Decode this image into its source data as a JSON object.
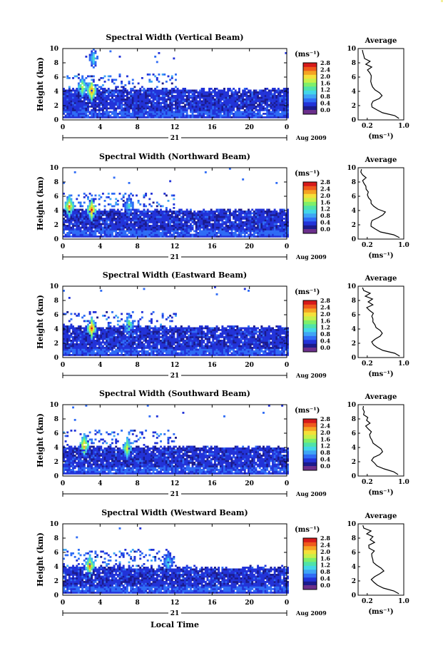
{
  "colors": {
    "colorbar": [
      "#1b1b8c",
      "#2233d8",
      "#2f6cf5",
      "#3fa5f5",
      "#43d6e8",
      "#50e3a8",
      "#7fef6a",
      "#c8f04a",
      "#f5e03a",
      "#f5a323",
      "#ef5a1c",
      "#d61a1a"
    ],
    "below_min": "#6b2f8c",
    "corner_mark": "#f3ef9a"
  },
  "shared": {
    "xticks": [
      "0",
      "4",
      "8",
      "12",
      "16",
      "20",
      "0"
    ],
    "yticks": [
      "0",
      "2",
      "4",
      "6",
      "8",
      "10"
    ],
    "ylabel": "Height (km)",
    "day_label": "21",
    "date_label": "Aug 2009",
    "unit_label": "(ms⁻¹)",
    "colorbar_ticks": [
      "0.0",
      "0.4",
      "0.8",
      "1.2",
      "1.6",
      "2.0",
      "2.4",
      "2.8"
    ],
    "avg_title": "Average",
    "avg_yticks": [
      "0",
      "2",
      "4",
      "6",
      "8",
      "10"
    ],
    "avg_xticks": [
      "0.2",
      "1.0"
    ],
    "avg_xlabel": "(ms⁻¹)",
    "xlabel": "Local Time"
  },
  "chart_data": [
    {
      "type": "heatmap",
      "title": "Spectral Width (Vertical Beam)",
      "x_range_hours": [
        0,
        24
      ],
      "y_range_km": [
        0,
        10
      ],
      "color_range_ms": [
        0.0,
        2.8
      ],
      "cloud_top_km": 4.2,
      "features": [
        {
          "t": 3.0,
          "h": 4.0,
          "v": 2.6
        },
        {
          "t": 2.0,
          "h": 4.5,
          "v": 1.8
        },
        {
          "t": 3.2,
          "h": 8.5,
          "v": 1.2
        }
      ],
      "average_profile": {
        "type": "line",
        "xlim": [
          0.0,
          1.0
        ],
        "ylim": [
          0,
          10
        ],
        "heights_km": [
          0.2,
          0.6,
          1.0,
          1.4,
          1.8,
          2.2,
          2.6,
          3.0,
          3.4,
          3.8,
          4.2,
          4.6,
          5.0,
          5.4,
          5.8,
          6.2,
          6.6,
          7.0,
          7.4,
          7.8,
          8.2,
          8.6,
          9.0,
          9.4,
          9.8
        ],
        "values_ms": [
          0.88,
          0.8,
          0.55,
          0.42,
          0.33,
          0.3,
          0.35,
          0.45,
          0.52,
          0.45,
          0.38,
          0.32,
          0.3,
          0.28,
          0.26,
          0.3,
          0.25,
          0.2,
          0.3,
          0.18,
          0.25,
          0.15,
          0.15,
          0.1,
          0.1
        ]
      }
    },
    {
      "type": "heatmap",
      "title": "Spectral Width (Northward Beam)",
      "x_range_hours": [
        0,
        24
      ],
      "y_range_km": [
        0,
        10
      ],
      "color_range_ms": [
        0.0,
        2.8
      ],
      "cloud_top_km": 4.0,
      "features": [
        {
          "t": 3.0,
          "h": 4.0,
          "v": 2.6
        },
        {
          "t": 0.6,
          "h": 4.5,
          "v": 2.4
        },
        {
          "t": 7.0,
          "h": 4.5,
          "v": 1.2
        }
      ],
      "average_profile": {
        "type": "line",
        "xlim": [
          0.0,
          1.0
        ],
        "ylim": [
          0,
          10
        ],
        "heights_km": [
          0.2,
          0.6,
          1.0,
          1.4,
          1.8,
          2.2,
          2.6,
          3.0,
          3.4,
          3.8,
          4.2,
          4.6,
          5.0,
          5.4,
          5.8,
          6.2,
          6.6,
          7.0,
          7.4,
          7.8,
          8.2,
          8.6,
          9.0,
          9.4,
          9.8
        ],
        "values_ms": [
          0.9,
          0.78,
          0.5,
          0.38,
          0.3,
          0.28,
          0.32,
          0.45,
          0.56,
          0.6,
          0.45,
          0.35,
          0.3,
          0.28,
          0.25,
          0.22,
          0.2,
          0.18,
          0.15,
          0.12,
          0.1,
          0.15,
          0.08,
          0.08,
          0.08
        ]
      }
    },
    {
      "type": "heatmap",
      "title": "Spectral Width (Eastward Beam)",
      "x_range_hours": [
        0,
        24
      ],
      "y_range_km": [
        0,
        10
      ],
      "color_range_ms": [
        0.0,
        2.8
      ],
      "cloud_top_km": 4.2,
      "features": [
        {
          "t": 3.0,
          "h": 4.0,
          "v": 2.6
        },
        {
          "t": 7.0,
          "h": 4.5,
          "v": 1.6
        }
      ],
      "average_profile": {
        "type": "line",
        "xlim": [
          0.0,
          1.0
        ],
        "ylim": [
          0,
          10
        ],
        "heights_km": [
          0.2,
          0.6,
          1.0,
          1.4,
          1.8,
          2.2,
          2.6,
          3.0,
          3.4,
          3.8,
          4.2,
          4.6,
          5.0,
          5.4,
          5.8,
          6.2,
          6.6,
          7.0,
          7.4,
          7.8,
          8.2,
          8.6,
          9.0,
          9.4,
          9.8
        ],
        "values_ms": [
          0.92,
          0.82,
          0.56,
          0.43,
          0.35,
          0.32,
          0.36,
          0.46,
          0.52,
          0.48,
          0.4,
          0.36,
          0.34,
          0.32,
          0.3,
          0.32,
          0.24,
          0.2,
          0.3,
          0.22,
          0.3,
          0.16,
          0.25,
          0.1,
          0.1
        ]
      }
    },
    {
      "type": "heatmap",
      "title": "Spectral Width (Southward Beam)",
      "x_range_hours": [
        0,
        24
      ],
      "y_range_km": [
        0,
        10
      ],
      "color_range_ms": [
        0.0,
        2.8
      ],
      "cloud_top_km": 4.0,
      "features": [
        {
          "t": 2.2,
          "h": 4.2,
          "v": 2.4
        },
        {
          "t": 6.8,
          "h": 3.8,
          "v": 2.0
        }
      ],
      "average_profile": {
        "type": "line",
        "xlim": [
          0.0,
          1.0
        ],
        "ylim": [
          0,
          10
        ],
        "heights_km": [
          0.2,
          0.6,
          1.0,
          1.4,
          1.8,
          2.2,
          2.6,
          3.0,
          3.4,
          3.8,
          4.2,
          4.6,
          5.0,
          5.4,
          5.8,
          6.2,
          6.6,
          7.0,
          7.4,
          7.8,
          8.2,
          8.6,
          9.0,
          9.4,
          9.8
        ],
        "values_ms": [
          0.88,
          0.8,
          0.55,
          0.42,
          0.34,
          0.3,
          0.34,
          0.46,
          0.55,
          0.5,
          0.4,
          0.34,
          0.32,
          0.28,
          0.26,
          0.3,
          0.22,
          0.18,
          0.26,
          0.18,
          0.22,
          0.14,
          0.12,
          0.1,
          0.1
        ]
      }
    },
    {
      "type": "heatmap",
      "title": "Spectral Width (Westward Beam)",
      "x_range_hours": [
        0,
        24
      ],
      "y_range_km": [
        0,
        10
      ],
      "color_range_ms": [
        0.0,
        2.8
      ],
      "cloud_top_km": 3.8,
      "features": [
        {
          "t": 2.8,
          "h": 4.0,
          "v": 2.4
        },
        {
          "t": 11.2,
          "h": 4.5,
          "v": 1.2
        }
      ],
      "average_profile": {
        "type": "line",
        "xlim": [
          0.0,
          1.0
        ],
        "ylim": [
          0,
          10
        ],
        "heights_km": [
          0.2,
          0.6,
          1.0,
          1.4,
          1.8,
          2.2,
          2.6,
          3.0,
          3.4,
          3.8,
          4.2,
          4.6,
          5.0,
          5.4,
          5.8,
          6.2,
          6.6,
          7.0,
          7.4,
          7.8,
          8.2,
          8.6,
          9.0,
          9.4,
          9.8
        ],
        "values_ms": [
          0.9,
          0.8,
          0.56,
          0.42,
          0.34,
          0.3,
          0.34,
          0.45,
          0.55,
          0.48,
          0.4,
          0.35,
          0.33,
          0.3,
          0.28,
          0.34,
          0.26,
          0.22,
          0.36,
          0.24,
          0.35,
          0.2,
          0.3,
          0.12,
          0.1
        ]
      }
    }
  ]
}
